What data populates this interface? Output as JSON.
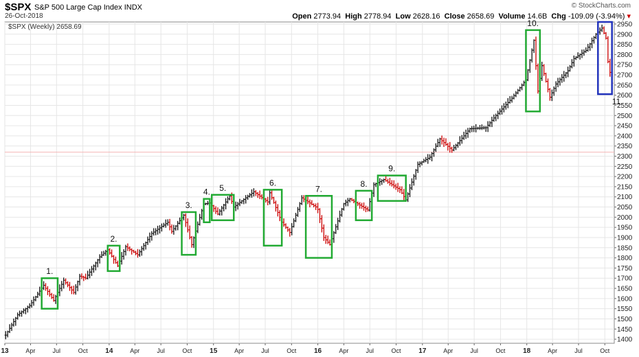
{
  "header": {
    "ticker": "$SPX",
    "name": "S&P 500 Large Cap Index",
    "exchange": "INDX",
    "date": "26-Oct-2018",
    "brand": "© StockCharts.com",
    "open_label": "Open",
    "open": "2773.94",
    "high_label": "High",
    "high": "2778.94",
    "low_label": "Low",
    "low": "2628.16",
    "close_label": "Close",
    "close": "2658.69",
    "volume_label": "Volume",
    "volume": "14.6B",
    "chg_label": "Chg",
    "chg": "-109.09 (-3.94%)"
  },
  "legend": {
    "label": "$SPX (Weekly) 2658.69"
  },
  "colors": {
    "up": "#111111",
    "down": "#cc0000",
    "box": "#22aa33",
    "box_last": "#2233bb",
    "refline": "#f4b6b6",
    "grid": "#e6e6e6"
  },
  "chart_data": {
    "type": "line",
    "style": "weekly bars (OHLC)",
    "series": [
      {
        "name": "$SPX (Weekly)",
        "x": [
          "2013-01",
          "2013-04",
          "2013-07",
          "2013-10",
          "2014-01",
          "2014-04",
          "2014-07",
          "2014-10",
          "2015-01",
          "2015-04",
          "2015-07",
          "2015-10",
          "2016-01",
          "2016-04",
          "2016-07",
          "2016-10",
          "2017-01",
          "2017-04",
          "2017-07",
          "2017-10",
          "2018-01",
          "2018-04",
          "2018-07",
          "2018-10"
        ],
        "values": [
          1440,
          1550,
          1640,
          1720,
          1810,
          1860,
          1960,
          1985,
          2060,
          2100,
          2105,
          2020,
          1910,
          2060,
          2165,
          2140,
          2270,
          2355,
          2440,
          2560,
          2820,
          2640,
          2800,
          2659
        ]
      }
    ],
    "path_points": [
      [
        "2013-01-04",
        1420
      ],
      [
        "2013-02-15",
        1520
      ],
      [
        "2013-03-29",
        1565
      ],
      [
        "2013-05-17",
        1665
      ],
      [
        "2013-06-21",
        1590
      ],
      [
        "2013-07-26",
        1690
      ],
      [
        "2013-08-30",
        1630
      ],
      [
        "2013-09-20",
        1710
      ],
      [
        "2013-10-11",
        1700
      ],
      [
        "2013-11-29",
        1805
      ],
      [
        "2013-12-27",
        1840
      ],
      [
        "2014-01-31",
        1760
      ],
      [
        "2014-02-28",
        1855
      ],
      [
        "2014-04-11",
        1815
      ],
      [
        "2014-05-30",
        1920
      ],
      [
        "2014-07-25",
        1975
      ],
      [
        "2014-08-08",
        1930
      ],
      [
        "2014-09-19",
        2010
      ],
      [
        "2014-10-17",
        1865
      ],
      [
        "2014-11-28",
        2065
      ],
      [
        "2014-12-19",
        2070
      ],
      [
        "2015-01-16",
        2015
      ],
      [
        "2015-02-27",
        2105
      ],
      [
        "2015-03-13",
        2050
      ],
      [
        "2015-05-22",
        2125
      ],
      [
        "2015-07-10",
        2075
      ],
      [
        "2015-07-17",
        2120
      ],
      [
        "2015-08-28",
        1975
      ],
      [
        "2015-09-25",
        1925
      ],
      [
        "2015-11-06",
        2095
      ],
      [
        "2015-12-31",
        2045
      ],
      [
        "2016-01-22",
        1900
      ],
      [
        "2016-02-12",
        1865
      ],
      [
        "2016-03-31",
        2065
      ],
      [
        "2016-04-22",
        2090
      ],
      [
        "2016-06-24",
        2035
      ],
      [
        "2016-07-15",
        2160
      ],
      [
        "2016-08-19",
        2185
      ],
      [
        "2016-10-14",
        2135
      ],
      [
        "2016-11-04",
        2085
      ],
      [
        "2016-12-16",
        2260
      ],
      [
        "2017-01-27",
        2295
      ],
      [
        "2017-03-03",
        2385
      ],
      [
        "2017-04-14",
        2330
      ],
      [
        "2017-06-16",
        2435
      ],
      [
        "2017-08-11",
        2440
      ],
      [
        "2017-09-15",
        2500
      ],
      [
        "2017-11-10",
        2585
      ],
      [
        "2017-12-29",
        2675
      ],
      [
        "2018-01-26",
        2870
      ],
      [
        "2018-02-09",
        2620
      ],
      [
        "2018-02-23",
        2745
      ],
      [
        "2018-03-23",
        2590
      ],
      [
        "2018-04-13",
        2655
      ],
      [
        "2018-05-25",
        2720
      ],
      [
        "2018-06-15",
        2780
      ],
      [
        "2018-07-27",
        2820
      ],
      [
        "2018-08-31",
        2900
      ],
      [
        "2018-09-21",
        2930
      ],
      [
        "2018-10-05",
        2880
      ],
      [
        "2018-10-12",
        2765
      ],
      [
        "2018-10-26",
        2659
      ]
    ],
    "xlabel": "",
    "ylabel": "",
    "ylim": [
      1380,
      2960
    ],
    "yticks": [
      1400,
      1450,
      1500,
      1550,
      1600,
      1650,
      1700,
      1750,
      1800,
      1850,
      1900,
      1950,
      2000,
      2050,
      2100,
      2150,
      2200,
      2250,
      2300,
      2350,
      2400,
      2450,
      2500,
      2550,
      2600,
      2650,
      2700,
      2750,
      2800,
      2850,
      2900,
      2950
    ],
    "xticks": [
      {
        "date": "2013-01-01",
        "label": "13",
        "major": true
      },
      {
        "date": "2013-04-01",
        "label": "Apr"
      },
      {
        "date": "2013-07-01",
        "label": "Jul"
      },
      {
        "date": "2013-10-01",
        "label": "Oct"
      },
      {
        "date": "2014-01-01",
        "label": "14",
        "major": true
      },
      {
        "date": "2014-04-01",
        "label": "Apr"
      },
      {
        "date": "2014-07-01",
        "label": "Jul"
      },
      {
        "date": "2014-10-01",
        "label": "Oct"
      },
      {
        "date": "2015-01-01",
        "label": "15",
        "major": true
      },
      {
        "date": "2015-04-01",
        "label": "Apr"
      },
      {
        "date": "2015-07-01",
        "label": "Jul"
      },
      {
        "date": "2015-10-01",
        "label": "Oct"
      },
      {
        "date": "2016-01-01",
        "label": "16",
        "major": true
      },
      {
        "date": "2016-04-01",
        "label": "Apr"
      },
      {
        "date": "2016-07-01",
        "label": "Jul"
      },
      {
        "date": "2016-10-01",
        "label": "Oct"
      },
      {
        "date": "2017-01-01",
        "label": "17",
        "major": true
      },
      {
        "date": "2017-04-01",
        "label": "Apr"
      },
      {
        "date": "2017-07-01",
        "label": "Jul"
      },
      {
        "date": "2017-10-01",
        "label": "Oct"
      },
      {
        "date": "2018-01-01",
        "label": "18",
        "major": true
      },
      {
        "date": "2018-04-01",
        "label": "Apr"
      },
      {
        "date": "2018-07-01",
        "label": "Jul"
      },
      {
        "date": "2018-10-01",
        "label": "Oct"
      }
    ],
    "reference_line": 2320,
    "grid": true,
    "annotations": [
      {
        "label": "1.",
        "start": "2013-05-10",
        "end": "2013-07-05",
        "low": 1550,
        "high": 1700,
        "label_pos": "above"
      },
      {
        "label": "2.",
        "start": "2013-12-27",
        "end": "2014-02-07",
        "low": 1735,
        "high": 1860,
        "label_pos": "above"
      },
      {
        "label": "3.",
        "start": "2014-09-12",
        "end": "2014-10-31",
        "low": 1815,
        "high": 2025,
        "label_pos": "above"
      },
      {
        "label": "4.",
        "start": "2014-11-28",
        "end": "2014-12-19",
        "low": 1975,
        "high": 2090,
        "label_pos": "above"
      },
      {
        "label": "5.",
        "start": "2014-12-26",
        "end": "2015-03-13",
        "low": 1985,
        "high": 2110,
        "label_pos": "above"
      },
      {
        "label": "6.",
        "start": "2015-06-26",
        "end": "2015-08-28",
        "low": 1860,
        "high": 2135,
        "label_pos": "above"
      },
      {
        "label": "7.",
        "start": "2015-11-20",
        "end": "2016-02-19",
        "low": 1800,
        "high": 2105,
        "label_pos": "above"
      },
      {
        "label": "8.",
        "start": "2016-05-13",
        "end": "2016-07-08",
        "low": 1985,
        "high": 2130,
        "label_pos": "above"
      },
      {
        "label": "9.",
        "start": "2016-07-29",
        "end": "2016-11-04",
        "low": 2080,
        "high": 2205,
        "label_pos": "above"
      },
      {
        "label": "10.",
        "start": "2017-12-29",
        "end": "2018-02-16",
        "low": 2520,
        "high": 2920,
        "label_pos": "above"
      },
      {
        "label": "11.",
        "start": "2018-09-07",
        "end": "2018-10-26",
        "low": 2605,
        "high": 2960,
        "label_pos": "below",
        "last": true
      }
    ]
  }
}
